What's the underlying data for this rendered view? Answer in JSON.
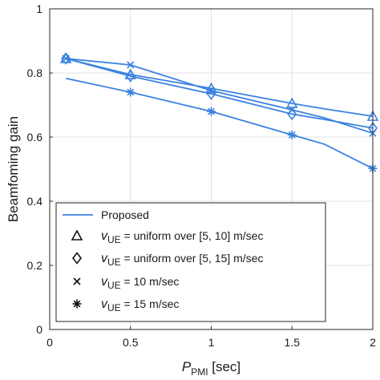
{
  "chart_data": {
    "type": "line",
    "xlabel": {
      "main": "P",
      "sub": "PMI",
      "unit": " [sec]"
    },
    "ylabel": "Beamfoming gain",
    "xlim": [
      0,
      2
    ],
    "ylim": [
      0,
      1
    ],
    "xticks": [
      0,
      0.5,
      1,
      1.5,
      2
    ],
    "xtick_labels": [
      "0",
      "0.5",
      "1",
      "1.5",
      "2"
    ],
    "yticks": [
      0,
      0.2,
      0.4,
      0.6,
      0.8,
      1
    ],
    "ytick_labels": [
      "0",
      "0.2",
      "0.4",
      "0.6",
      "0.8",
      "1"
    ],
    "grid": true,
    "legend_placement": "lower-left",
    "line_color": "#3b82e0",
    "legend": [
      {
        "marker": "line",
        "text": "Proposed"
      },
      {
        "marker": "triangle",
        "sym": "v",
        "sub": "UE",
        "text": " = uniform over [5, 10] m/sec"
      },
      {
        "marker": "diamond",
        "sym": "v",
        "sub": "UE",
        "text": " = uniform over [5, 15] m/sec"
      },
      {
        "marker": "x",
        "sym": "v",
        "sub": "UE",
        "text": " = 10 m/sec"
      },
      {
        "marker": "star",
        "sym": "v",
        "sub": "UE",
        "text": " = 15 m/sec"
      }
    ],
    "series": [
      {
        "marker": "triangle",
        "x": [
          0.1,
          0.5,
          1.0,
          1.5,
          2.0
        ],
        "y": [
          0.845,
          0.795,
          0.752,
          0.705,
          0.665
        ],
        "curve_x": [
          0.1,
          0.5,
          1.0,
          1.5,
          1.7,
          2.0
        ],
        "curve_y": [
          0.845,
          0.795,
          0.752,
          0.705,
          0.688,
          0.665
        ]
      },
      {
        "marker": "diamond",
        "x": [
          0.1,
          0.5,
          1.0,
          1.5,
          2.0
        ],
        "y": [
          0.845,
          0.79,
          0.735,
          0.672,
          0.628
        ],
        "curve_x": [
          0.1,
          0.5,
          1.0,
          1.5,
          1.7,
          2.0
        ],
        "curve_y": [
          0.845,
          0.79,
          0.735,
          0.672,
          0.655,
          0.628
        ]
      },
      {
        "marker": "x",
        "x": [
          0.1,
          0.5,
          1.0,
          1.5,
          2.0
        ],
        "y": [
          0.845,
          0.825,
          0.745,
          0.685,
          0.612
        ],
        "curve_x": [
          0.1,
          0.5,
          1.0,
          1.5,
          1.7,
          2.0
        ],
        "curve_y": [
          0.845,
          0.825,
          0.745,
          0.685,
          0.66,
          0.612
        ]
      },
      {
        "marker": "star",
        "x": [
          0.5,
          1.0,
          1.5,
          2.0
        ],
        "y": [
          0.74,
          0.68,
          0.607,
          0.502
        ],
        "curve_x": [
          0.1,
          0.5,
          1.0,
          1.5,
          1.7,
          2.0
        ],
        "curve_y": [
          0.783,
          0.74,
          0.68,
          0.607,
          0.578,
          0.502
        ]
      }
    ]
  }
}
